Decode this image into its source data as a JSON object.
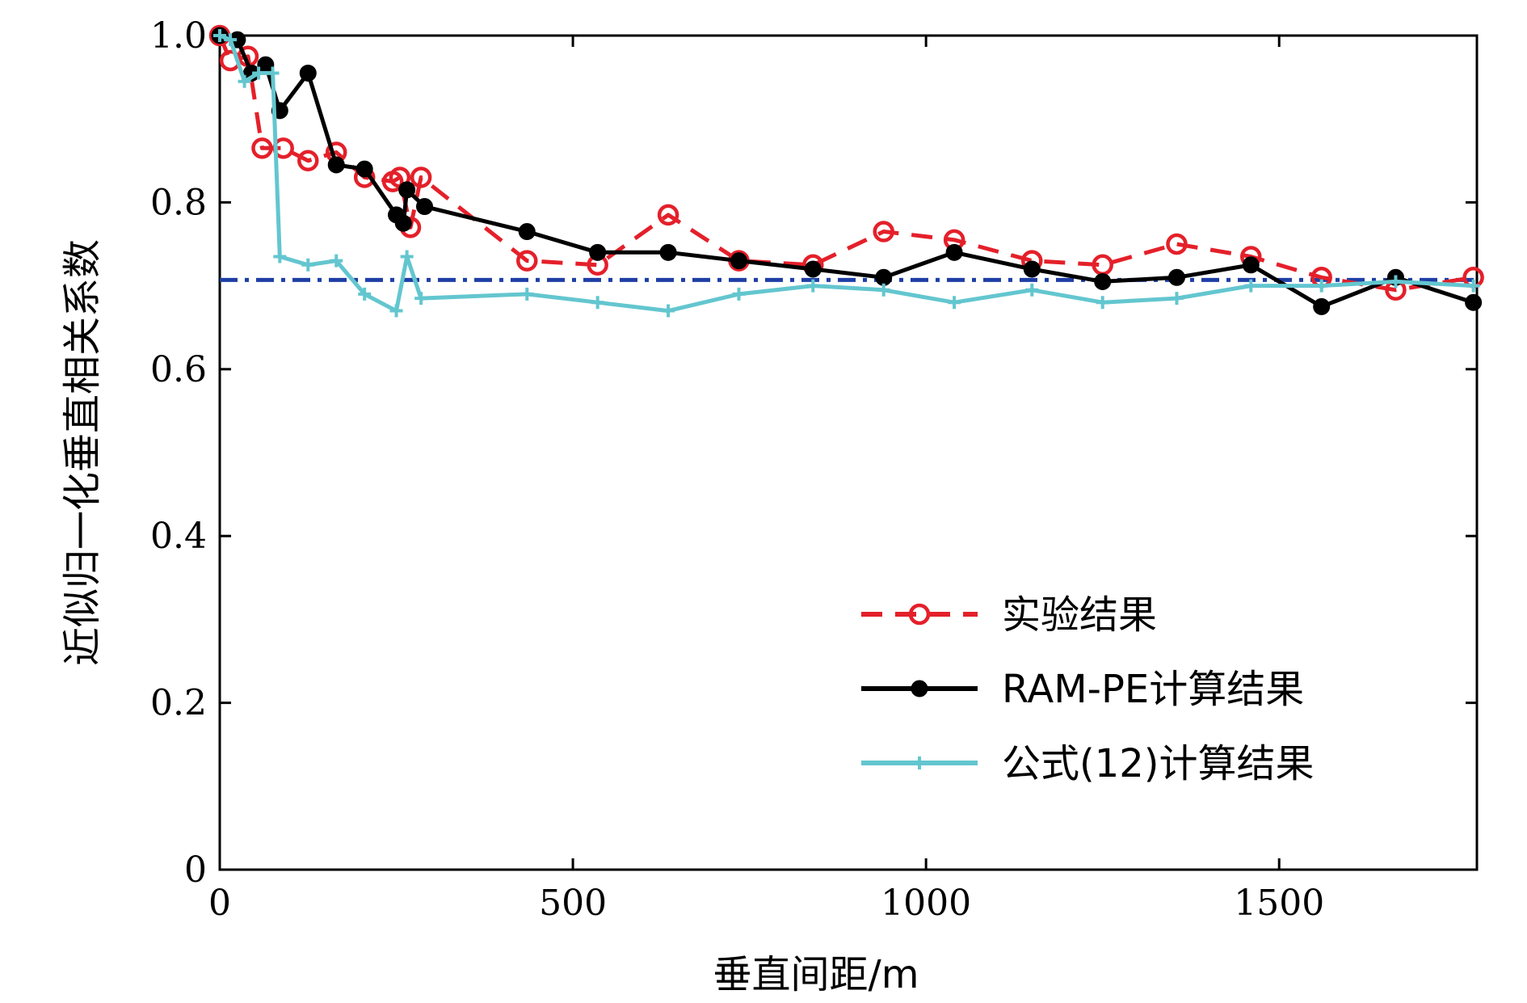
{
  "chart_data": {
    "type": "line",
    "xlabel": "垂直间距/m",
    "ylabel": "近似归一化垂直相关系数",
    "xlim": [
      0,
      1780
    ],
    "ylim": [
      0,
      1.0
    ],
    "xticks": [
      "0",
      "500",
      "1000",
      "1500"
    ],
    "xtick_values": [
      0,
      500,
      1000,
      1500
    ],
    "yticks": [
      "0",
      "0.2",
      "0.4",
      "0.6",
      "0.8",
      "1.0"
    ],
    "ytick_values": [
      0,
      0.2,
      0.4,
      0.6,
      0.8,
      1.0
    ],
    "grid": false,
    "legend_position": "lower-right",
    "reference_line": {
      "y": 0.707,
      "color": "#1f3fa6",
      "style": "dash-dot"
    },
    "series": [
      {
        "name": "实验结果",
        "color": "#e4202a",
        "style": "dashed",
        "marker": "open-circle",
        "x": [
          0,
          15,
          40,
          60,
          90,
          125,
          165,
          205,
          245,
          255,
          270,
          285,
          435,
          535,
          635,
          735,
          840,
          940,
          1040,
          1150,
          1250,
          1355,
          1460,
          1560,
          1665,
          1775
        ],
        "y": [
          1.0,
          0.97,
          0.975,
          0.865,
          0.865,
          0.85,
          0.86,
          0.83,
          0.825,
          0.83,
          0.77,
          0.83,
          0.73,
          0.725,
          0.785,
          0.73,
          0.725,
          0.765,
          0.755,
          0.73,
          0.725,
          0.75,
          0.735,
          0.71,
          0.695,
          0.71
        ]
      },
      {
        "name": "RAM-PE计算结果",
        "color": "#000000",
        "style": "solid",
        "marker": "filled-circle",
        "x": [
          0,
          25,
          45,
          65,
          85,
          125,
          165,
          205,
          250,
          260,
          265,
          290,
          435,
          535,
          635,
          735,
          840,
          940,
          1040,
          1150,
          1250,
          1355,
          1460,
          1560,
          1665,
          1775
        ],
        "y": [
          1.0,
          0.995,
          0.955,
          0.965,
          0.91,
          0.955,
          0.845,
          0.84,
          0.785,
          0.775,
          0.815,
          0.795,
          0.765,
          0.74,
          0.74,
          0.73,
          0.72,
          0.71,
          0.74,
          0.72,
          0.705,
          0.71,
          0.725,
          0.675,
          0.71,
          0.68
        ]
      },
      {
        "name": "公式(12)计算结果",
        "color": "#63c6cf",
        "style": "solid",
        "marker": "plus",
        "x": [
          0,
          15,
          35,
          55,
          75,
          85,
          125,
          165,
          205,
          250,
          265,
          285,
          435,
          535,
          635,
          735,
          840,
          940,
          1040,
          1150,
          1250,
          1355,
          1460,
          1560,
          1665,
          1775
        ],
        "y": [
          1.0,
          0.995,
          0.945,
          0.955,
          0.955,
          0.735,
          0.725,
          0.73,
          0.69,
          0.67,
          0.735,
          0.685,
          0.69,
          0.68,
          0.67,
          0.69,
          0.7,
          0.695,
          0.68,
          0.695,
          0.68,
          0.685,
          0.7,
          0.7,
          0.705,
          0.7
        ]
      }
    ]
  }
}
